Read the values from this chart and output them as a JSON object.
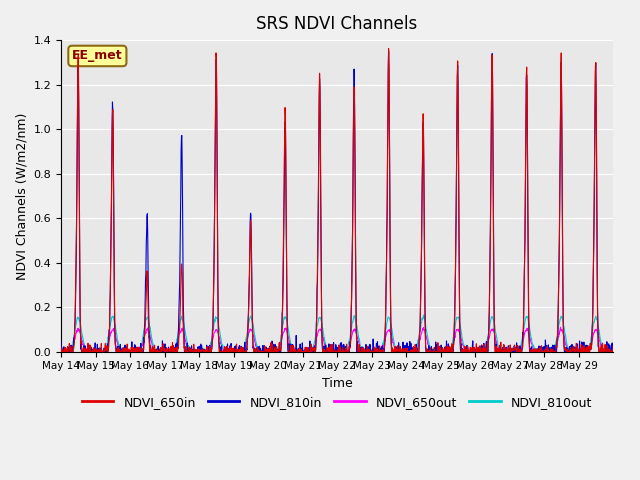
{
  "title": "SRS NDVI Channels",
  "xlabel": "Time",
  "ylabel": "NDVI Channels (W/m2/nm)",
  "ylim": [
    0,
    1.4
  ],
  "background_color": "#f0f0f0",
  "plot_bg_color": "#e8e8e8",
  "annotation_text": "EE_met",
  "annotation_box_color": "#ffff99",
  "annotation_text_color": "#8b0000",
  "legend_entries": [
    "NDVI_650in",
    "NDVI_810in",
    "NDVI_650out",
    "NDVI_810out"
  ],
  "legend_colors": [
    "#dd0000",
    "#0000cc",
    "#ff00ff",
    "#00cccc"
  ],
  "tick_labels": [
    "May 14",
    "May 15",
    "May 16",
    "May 17",
    "May 18",
    "May 19",
    "May 20",
    "May 21",
    "May 22",
    "May 23",
    "May 24",
    "May 25",
    "May 26",
    "May 27",
    "May 28",
    "May 29"
  ],
  "num_days": 16,
  "peak_heights_650in": [
    1.22,
    1.0,
    0.32,
    0.35,
    1.23,
    0.55,
    1.0,
    1.15,
    1.1,
    1.24,
    0.97,
    1.19,
    1.21,
    1.19,
    1.21,
    1.2
  ],
  "peak_heights_810in": [
    1.18,
    1.05,
    0.57,
    0.9,
    1.21,
    0.57,
    0.95,
    1.1,
    1.15,
    1.22,
    0.95,
    1.17,
    1.2,
    1.16,
    1.16,
    1.18
  ],
  "yticks": [
    0.0,
    0.2,
    0.4,
    0.6,
    0.8,
    1.0,
    1.2,
    1.4
  ]
}
